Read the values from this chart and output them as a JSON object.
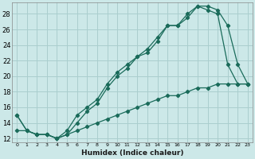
{
  "xlabel": "Humidex (Indice chaleur)",
  "bg_color": "#cce8e8",
  "grid_color": "#aacece",
  "line_color": "#1a6b5a",
  "xlim": [
    -0.5,
    23.5
  ],
  "ylim": [
    11.5,
    29.5
  ],
  "xticks": [
    0,
    1,
    2,
    3,
    4,
    5,
    6,
    7,
    8,
    9,
    10,
    11,
    12,
    13,
    14,
    15,
    16,
    17,
    18,
    19,
    20,
    21,
    22,
    23
  ],
  "yticks": [
    12,
    14,
    16,
    18,
    20,
    22,
    24,
    26,
    28
  ],
  "line1_x": [
    0,
    1,
    2,
    3,
    4,
    5,
    6,
    7,
    8,
    9,
    10,
    11,
    12,
    13,
    14,
    15,
    16,
    17,
    18,
    19,
    20,
    21,
    22,
    23
  ],
  "line1_y": [
    15,
    13,
    12.5,
    12.5,
    12,
    12.5,
    14,
    15.5,
    16.5,
    18.5,
    20,
    21,
    22.5,
    23,
    24.5,
    26.5,
    26.5,
    28,
    29,
    28.5,
    28,
    21.5,
    19,
    19
  ],
  "line2_x": [
    0,
    1,
    2,
    3,
    4,
    5,
    6,
    7,
    8,
    9,
    10,
    11,
    12,
    13,
    14,
    15,
    16,
    17,
    18,
    19,
    20,
    21,
    22,
    23
  ],
  "line2_y": [
    15,
    13,
    12.5,
    12.5,
    12,
    13,
    15,
    16,
    17,
    19,
    20.5,
    21.5,
    22.5,
    23.5,
    25,
    26.5,
    26.5,
    27.5,
    29,
    29,
    28.5,
    26.5,
    21.5,
    19
  ],
  "line3_x": [
    0,
    1,
    2,
    3,
    4,
    5,
    6,
    7,
    8,
    9,
    10,
    11,
    12,
    13,
    14,
    15,
    16,
    17,
    18,
    19,
    20,
    21,
    22,
    23
  ],
  "line3_y": [
    13,
    13,
    12.5,
    12.5,
    12,
    12.5,
    13,
    13.5,
    14,
    14.5,
    15,
    15.5,
    16,
    16.5,
    17,
    17.5,
    17.5,
    18,
    18.5,
    18.5,
    19,
    19,
    19,
    19
  ]
}
